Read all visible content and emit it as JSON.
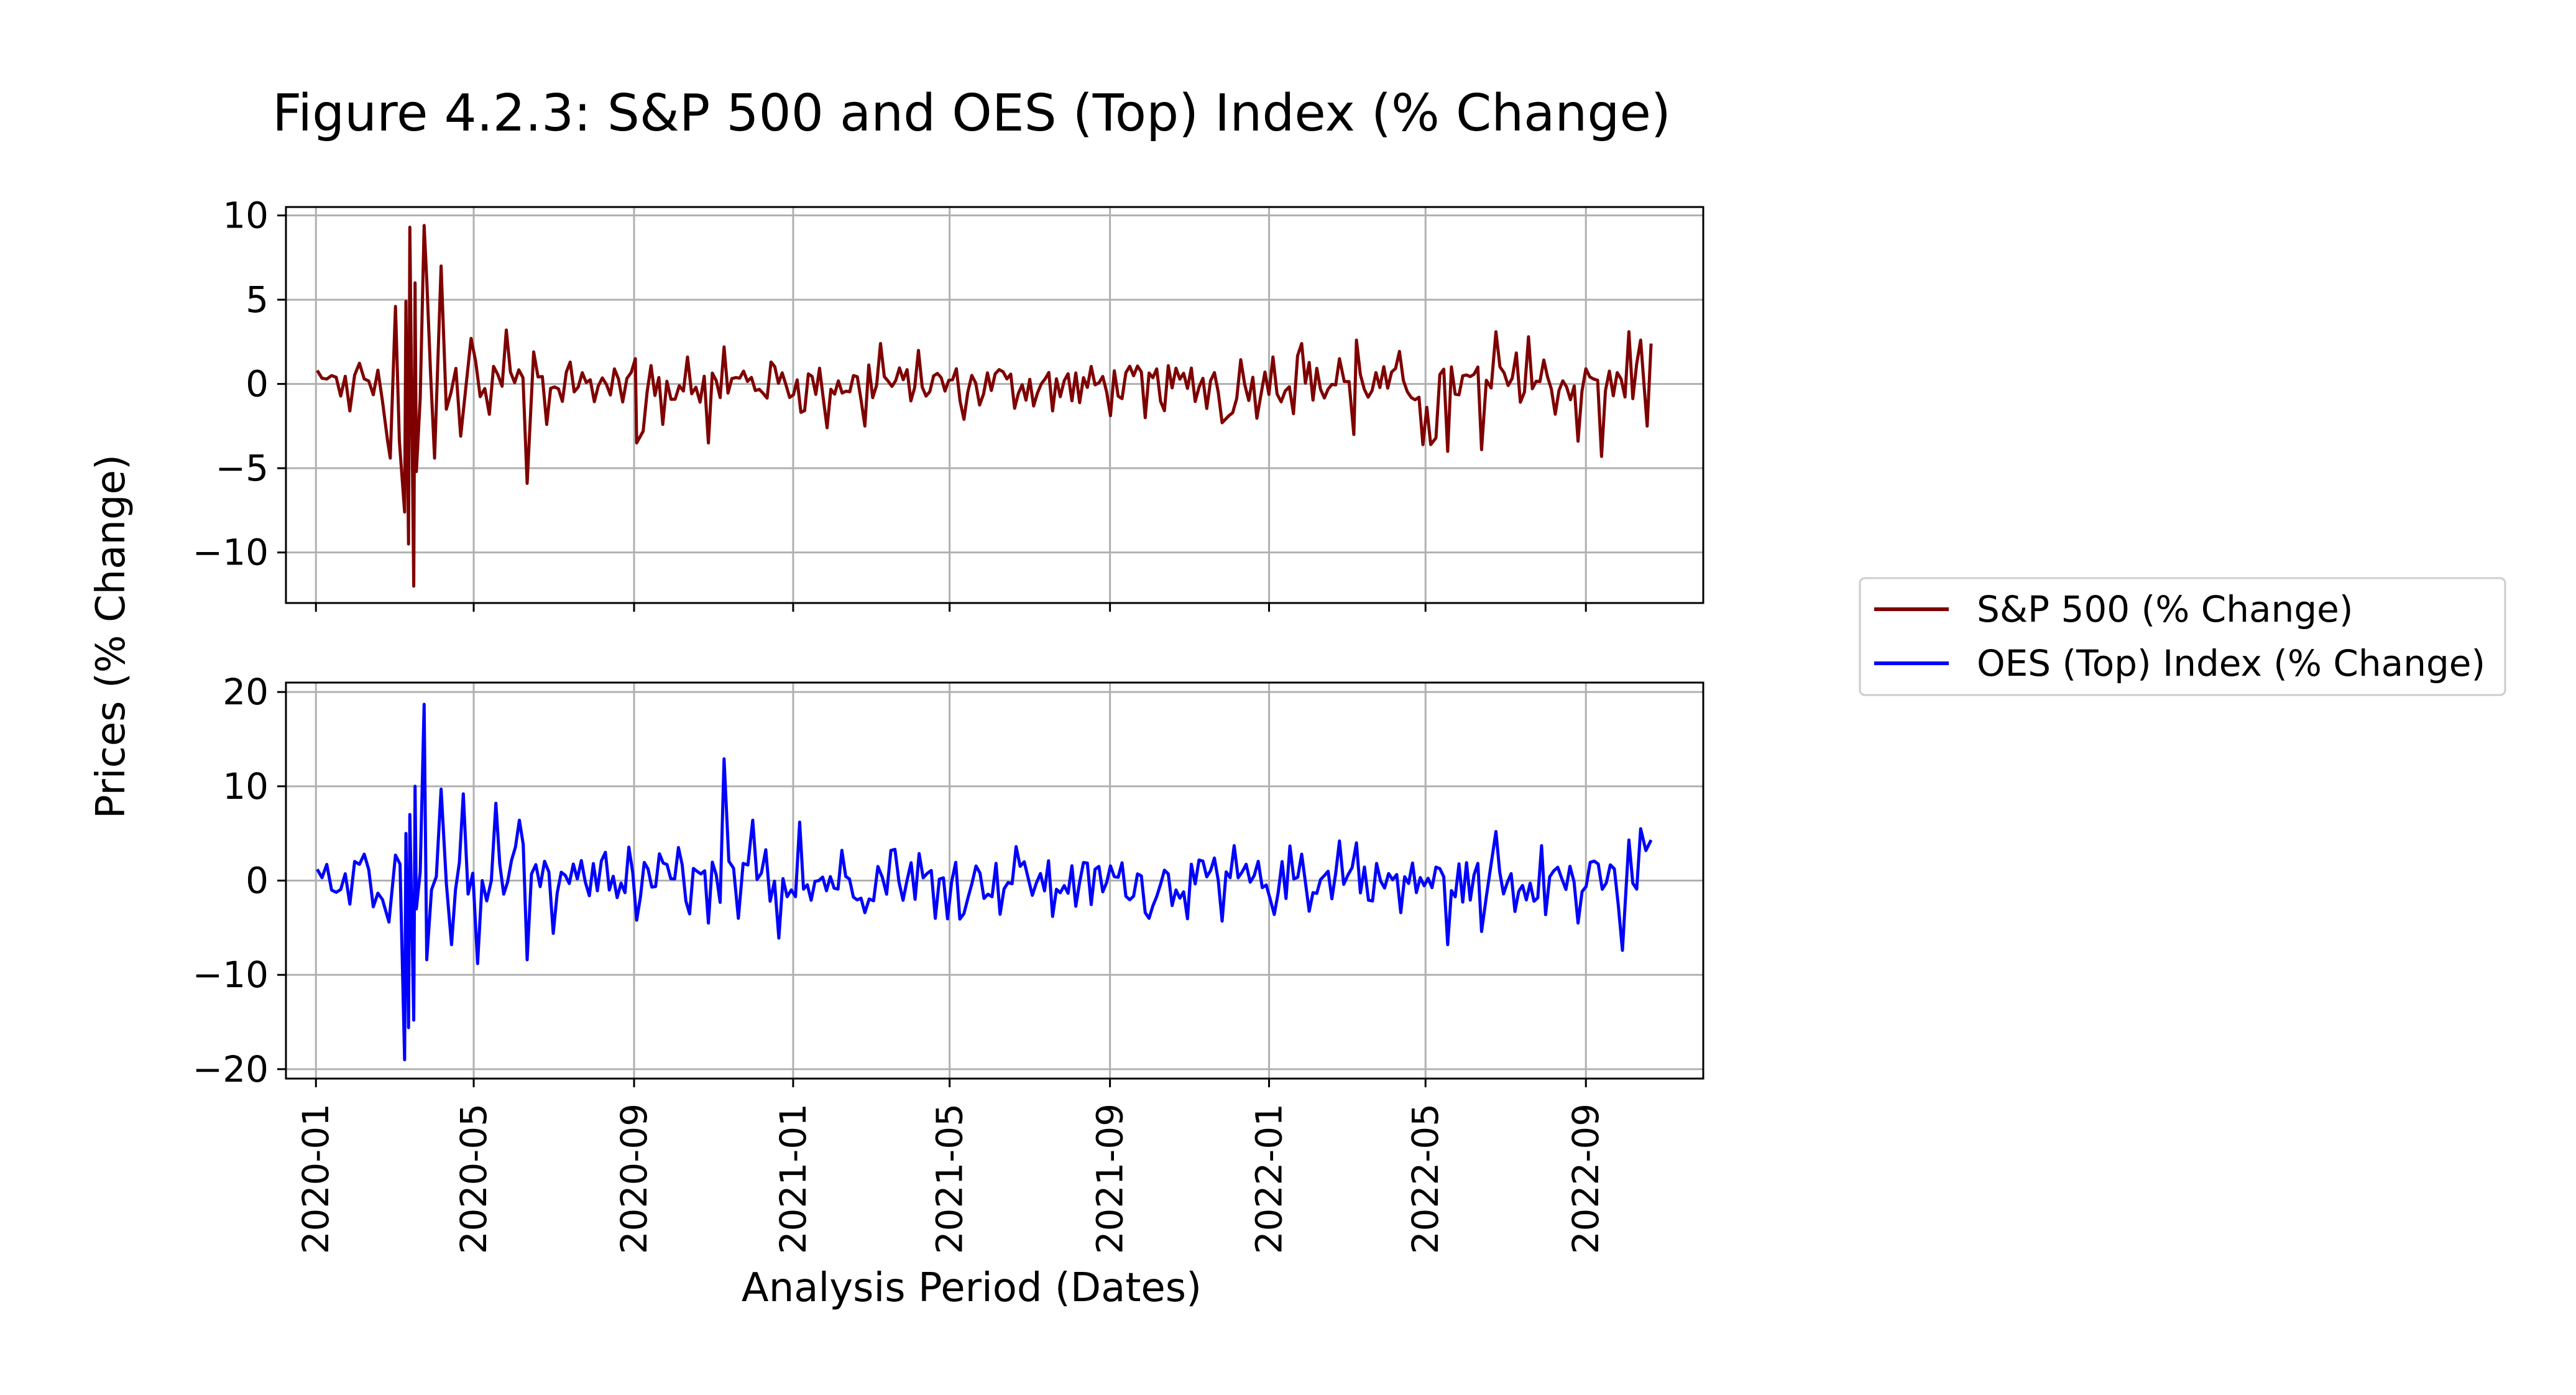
{
  "chart_data": {
    "type": "line",
    "title": "Figure 4.2.3: S&P 500 and OES (Top) Index (% Change)",
    "xlabel": "Analysis Period (Dates)",
    "ylabel": "Prices (% Change)",
    "x_range": [
      "2019-12-09",
      "2022-11-30"
    ],
    "x_ticks": [
      "2020-01",
      "2020-05",
      "2020-09",
      "2021-01",
      "2021-05",
      "2021-09",
      "2022-01",
      "2022-05",
      "2022-09"
    ],
    "grid": true,
    "legend_placement": "right",
    "legend": [
      "S&P 500 (% Change)",
      "OES (Top) Index (% Change)"
    ],
    "panels": [
      {
        "series_name": "S&P 500 (% Change)",
        "color": "#7f0000",
        "ylim": [
          -13,
          10.5
        ],
        "y_ticks": [
          10,
          5,
          0,
          -5,
          -10
        ],
        "y_tick_labels": [
          "10",
          "5",
          "0",
          "−5",
          "−10"
        ],
        "points": [
          [
            "2020-01-02",
            0.8
          ],
          [
            "2020-01-13",
            0.5
          ],
          [
            "2020-01-27",
            -1.6
          ],
          [
            "2020-02-07",
            0.3
          ],
          [
            "2020-02-21",
            -1.0
          ],
          [
            "2020-02-25",
            -3.4
          ],
          [
            "2020-02-27",
            -4.4
          ],
          [
            "2020-03-02",
            4.6
          ],
          [
            "2020-03-05",
            -3.4
          ],
          [
            "2020-03-09",
            -7.6
          ],
          [
            "2020-03-10",
            4.9
          ],
          [
            "2020-03-12",
            -9.5
          ],
          [
            "2020-03-13",
            9.3
          ],
          [
            "2020-03-16",
            -12.0
          ],
          [
            "2020-03-17",
            6.0
          ],
          [
            "2020-03-18",
            -5.2
          ],
          [
            "2020-03-24",
            9.4
          ],
          [
            "2020-03-26",
            6.2
          ],
          [
            "2020-04-01",
            -4.4
          ],
          [
            "2020-04-06",
            7.0
          ],
          [
            "2020-04-10",
            -1.5
          ],
          [
            "2020-04-21",
            -3.1
          ],
          [
            "2020-04-29",
            2.7
          ],
          [
            "2020-05-13",
            -1.8
          ],
          [
            "2020-05-26",
            3.2
          ],
          [
            "2020-06-11",
            -5.9
          ],
          [
            "2020-06-16",
            1.9
          ],
          [
            "2020-06-26",
            -2.4
          ],
          [
            "2020-07-14",
            1.3
          ],
          [
            "2020-08-20",
            0.3
          ],
          [
            "2020-09-02",
            1.5
          ],
          [
            "2020-09-03",
            -3.5
          ],
          [
            "2020-09-08",
            -2.8
          ],
          [
            "2020-09-23",
            -2.4
          ],
          [
            "2020-10-12",
            1.6
          ],
          [
            "2020-10-28",
            -3.5
          ],
          [
            "2020-11-09",
            2.2
          ],
          [
            "2020-12-15",
            1.3
          ],
          [
            "2021-01-27",
            -2.6
          ],
          [
            "2021-02-25",
            -2.5
          ],
          [
            "2021-03-09",
            2.4
          ],
          [
            "2021-05-12",
            -2.1
          ],
          [
            "2021-06-14",
            0.3
          ],
          [
            "2021-07-19",
            -1.6
          ],
          [
            "2021-09-28",
            -2.0
          ],
          [
            "2021-11-26",
            -2.3
          ],
          [
            "2021-12-01",
            -1.9
          ],
          [
            "2022-01-04",
            1.6
          ],
          [
            "2022-01-26",
            2.4
          ],
          [
            "2022-02-24",
            1.5
          ],
          [
            "2022-03-07",
            -3.0
          ],
          [
            "2022-03-09",
            2.6
          ],
          [
            "2022-04-29",
            -3.6
          ],
          [
            "2022-05-05",
            -3.6
          ],
          [
            "2022-05-09",
            -3.2
          ],
          [
            "2022-05-18",
            -4.0
          ],
          [
            "2022-06-13",
            -3.9
          ],
          [
            "2022-06-24",
            3.1
          ],
          [
            "2022-07-19",
            2.8
          ],
          [
            "2022-08-26",
            -3.4
          ],
          [
            "2022-09-13",
            -4.3
          ],
          [
            "2022-10-04",
            3.1
          ],
          [
            "2022-10-13",
            2.6
          ],
          [
            "2022-10-18",
            -2.5
          ],
          [
            "2022-10-21",
            2.4
          ]
        ]
      },
      {
        "series_name": "OES (Top) Index (% Change)",
        "color": "#0000ff",
        "ylim": [
          -21,
          21
        ],
        "y_ticks": [
          20,
          10,
          0,
          -10,
          -20
        ],
        "y_tick_labels": [
          "20",
          "10",
          "0",
          "−10",
          "−20"
        ],
        "points": [
          [
            "2020-01-02",
            1.2
          ],
          [
            "2020-01-13",
            -1.0
          ],
          [
            "2020-01-27",
            -2.5
          ],
          [
            "2020-02-07",
            2.8
          ],
          [
            "2020-02-21",
            -2.0
          ],
          [
            "2020-02-26",
            -4.4
          ],
          [
            "2020-03-02",
            2.7
          ],
          [
            "2020-03-09",
            -19.0
          ],
          [
            "2020-03-10",
            5.0
          ],
          [
            "2020-03-12",
            -15.6
          ],
          [
            "2020-03-13",
            7.0
          ],
          [
            "2020-03-16",
            -14.8
          ],
          [
            "2020-03-17",
            10.0
          ],
          [
            "2020-03-18",
            -3.0
          ],
          [
            "2020-03-24",
            18.7
          ],
          [
            "2020-03-26",
            -8.4
          ],
          [
            "2020-04-06",
            9.7
          ],
          [
            "2020-04-14",
            -6.8
          ],
          [
            "2020-04-23",
            9.2
          ],
          [
            "2020-05-04",
            -8.8
          ],
          [
            "2020-05-18",
            8.2
          ],
          [
            "2020-06-11",
            -8.4
          ],
          [
            "2020-06-05",
            6.4
          ],
          [
            "2020-07-01",
            -5.6
          ],
          [
            "2020-08-10",
            3.0
          ],
          [
            "2020-09-03",
            -4.2
          ],
          [
            "2020-10-05",
            3.5
          ],
          [
            "2020-10-28",
            -4.5
          ],
          [
            "2020-11-09",
            12.9
          ],
          [
            "2020-11-20",
            -4.0
          ],
          [
            "2020-12-01",
            6.4
          ],
          [
            "2020-12-21",
            -6.1
          ],
          [
            "2021-01-06",
            6.2
          ],
          [
            "2021-02-25",
            -3.4
          ],
          [
            "2021-03-17",
            3.2
          ],
          [
            "2021-04-20",
            -4.0
          ],
          [
            "2021-05-12",
            -3.5
          ],
          [
            "2021-06-21",
            3.6
          ],
          [
            "2021-07-19",
            -3.8
          ],
          [
            "2021-09-28",
            -3.4
          ],
          [
            "2021-11-26",
            -4.3
          ],
          [
            "2022-01-05",
            -3.6
          ],
          [
            "2022-01-26",
            2.8
          ],
          [
            "2022-02-24",
            4.2
          ],
          [
            "2022-03-09",
            4.0
          ],
          [
            "2022-04-12",
            -3.4
          ],
          [
            "2022-05-18",
            -6.8
          ],
          [
            "2022-06-13",
            -5.4
          ],
          [
            "2022-06-24",
            5.2
          ],
          [
            "2022-07-29",
            3.7
          ],
          [
            "2022-08-26",
            -4.5
          ],
          [
            "2022-09-29",
            -7.4
          ],
          [
            "2022-10-04",
            4.3
          ],
          [
            "2022-10-13",
            5.5
          ],
          [
            "2022-10-21",
            4.3
          ]
        ]
      }
    ]
  }
}
